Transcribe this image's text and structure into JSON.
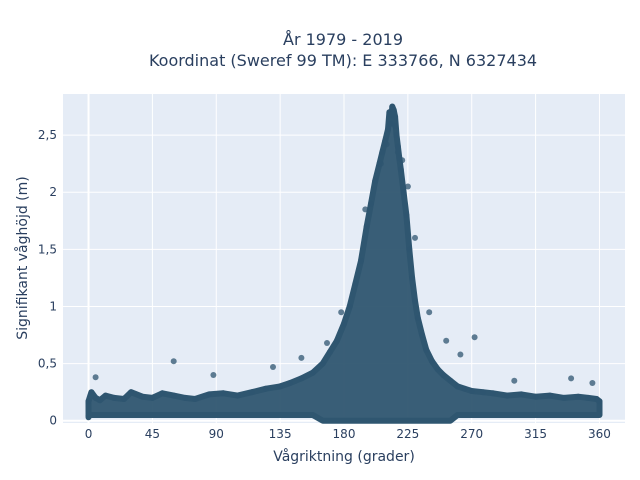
{
  "chart_data": {
    "type": "scatter",
    "title_line1": "År 1979 - 2019",
    "title_line2": "Koordinat (Sweref 99 TM): E 333766, N 6327434",
    "xlabel": "Vågriktning (grader)",
    "ylabel": "Signifikant våghöjd (m)",
    "xlim": [
      -18,
      378
    ],
    "ylim": [
      -0.02,
      2.86
    ],
    "x_ticks": [
      {
        "value": 0,
        "label": "0"
      },
      {
        "value": 45,
        "label": "45"
      },
      {
        "value": 90,
        "label": "90"
      },
      {
        "value": 135,
        "label": "135"
      },
      {
        "value": 180,
        "label": "180"
      },
      {
        "value": 225,
        "label": "225"
      },
      {
        "value": 270,
        "label": "270"
      },
      {
        "value": 315,
        "label": "315"
      },
      {
        "value": 360,
        "label": "360"
      }
    ],
    "y_ticks": [
      {
        "value": 0,
        "label": "0"
      },
      {
        "value": 0.5,
        "label": "0,5"
      },
      {
        "value": 1,
        "label": "1"
      },
      {
        "value": 1.5,
        "label": "1,5"
      },
      {
        "value": 2,
        "label": "2"
      },
      {
        "value": 2.5,
        "label": "2,5"
      }
    ],
    "grid": true,
    "plot_background": "#e5ecf6",
    "marker_color": "#2f5670",
    "x": [
      0,
      2,
      5,
      8,
      12,
      18,
      25,
      30,
      38,
      45,
      52,
      60,
      68,
      75,
      85,
      95,
      105,
      115,
      125,
      135,
      142,
      150,
      158,
      165,
      170,
      175,
      180,
      184,
      188,
      192,
      196,
      199,
      202,
      205,
      207,
      209,
      211,
      212,
      213,
      214,
      215,
      216,
      217,
      218,
      219,
      220,
      222,
      224,
      226,
      228,
      230,
      232,
      235,
      238,
      242,
      246,
      250,
      255,
      260,
      265,
      270,
      278,
      285,
      295,
      305,
      315,
      325,
      335,
      345,
      352,
      358,
      360,
      5,
      60,
      88,
      130,
      150,
      168,
      178,
      195,
      206,
      210,
      213,
      216,
      218,
      221,
      225,
      230,
      240,
      252,
      262,
      272,
      300,
      340,
      355
    ],
    "y": [
      0.17,
      0.25,
      0.2,
      0.18,
      0.22,
      0.2,
      0.19,
      0.25,
      0.21,
      0.2,
      0.24,
      0.22,
      0.2,
      0.19,
      0.23,
      0.24,
      0.22,
      0.25,
      0.28,
      0.3,
      0.33,
      0.37,
      0.42,
      0.5,
      0.6,
      0.7,
      0.85,
      1.0,
      1.2,
      1.4,
      1.7,
      1.9,
      2.1,
      2.25,
      2.35,
      2.45,
      2.55,
      2.7,
      2.6,
      2.75,
      2.72,
      2.66,
      2.5,
      2.4,
      2.3,
      2.2,
      2.0,
      1.8,
      1.5,
      1.25,
      1.05,
      0.9,
      0.75,
      0.62,
      0.52,
      0.45,
      0.4,
      0.35,
      0.3,
      0.28,
      0.26,
      0.25,
      0.24,
      0.22,
      0.23,
      0.21,
      0.22,
      0.2,
      0.21,
      0.2,
      0.19,
      0.17,
      0.38,
      0.52,
      0.4,
      0.47,
      0.55,
      0.68,
      0.95,
      1.85,
      2.25,
      2.42,
      2.68,
      2.58,
      2.35,
      2.28,
      2.05,
      1.6,
      0.95,
      0.7,
      0.58,
      0.73,
      0.35,
      0.37,
      0.33
    ]
  }
}
